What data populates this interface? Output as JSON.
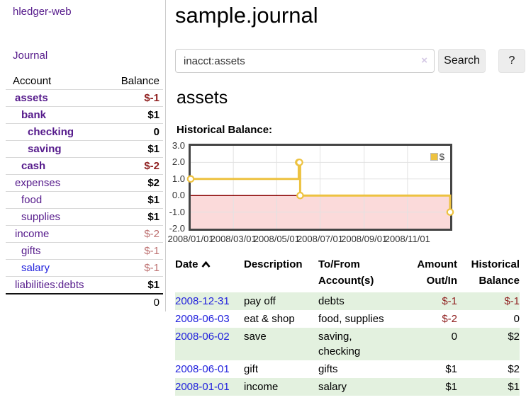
{
  "app": {
    "title": "hledger-web"
  },
  "nav": {
    "journal": "Journal"
  },
  "sidebar": {
    "header": {
      "account": "Account",
      "balance": "Balance"
    },
    "accounts": [
      {
        "name": "assets",
        "balance": "$-1"
      },
      {
        "name": "bank",
        "balance": "$1"
      },
      {
        "name": "checking",
        "balance": "0"
      },
      {
        "name": "saving",
        "balance": "$1"
      },
      {
        "name": "cash",
        "balance": "$-2"
      },
      {
        "name": "expenses",
        "balance": "$2"
      },
      {
        "name": "food",
        "balance": "$1"
      },
      {
        "name": "supplies",
        "balance": "$1"
      },
      {
        "name": "income",
        "balance": "$-2"
      },
      {
        "name": "gifts",
        "balance": "$-1"
      },
      {
        "name": "salary",
        "balance": "$-1"
      },
      {
        "name": "liabilities:debts",
        "balance": "$1"
      }
    ],
    "total": "0"
  },
  "header": {
    "title": "sample.journal"
  },
  "search": {
    "query": "inacct:assets",
    "clear_icon": "×",
    "search_label": "Search",
    "help_label": "?"
  },
  "main": {
    "account_heading": "assets",
    "chart_label": "Historical Balance:"
  },
  "chart_data": {
    "type": "line",
    "title": "Historical Balance:",
    "step": true,
    "series": [
      {
        "name": "$",
        "color": "#edc240",
        "points": [
          [
            "2008-01-01",
            1
          ],
          [
            "2008-06-01",
            2
          ],
          [
            "2008-06-02",
            2
          ],
          [
            "2008-06-03",
            0
          ],
          [
            "2008-12-31",
            -1
          ]
        ]
      }
    ],
    "xrange": [
      "2008-01-01",
      "2008-12-31"
    ],
    "ylim": [
      -2,
      3
    ],
    "yticks": [
      "3.0",
      "2.0",
      "1.0",
      "0.0",
      "-1.0",
      "-2.0"
    ],
    "xticks": [
      "2008/01/01",
      "2008/03/01",
      "2008/05/01",
      "2008/07/01",
      "2008/09/01",
      "2008/11/01"
    ],
    "legend_position": "top-right",
    "grid": true,
    "negative_fill": "#fbdada",
    "zero_line_color": "#8b0000",
    "gridline_color": "#e2e2e2"
  },
  "register": {
    "columns": [
      "Date",
      "Description",
      "To/From Account(s)",
      "Amount Out/In",
      "Historical Balance"
    ],
    "sort_icon": "chevron-up",
    "rows": [
      {
        "date": "2008-12-31",
        "description": "pay off",
        "accounts": "debts",
        "amount": "$-1",
        "balance": "$-1"
      },
      {
        "date": "2008-06-03",
        "description": "eat & shop",
        "accounts": "food, supplies",
        "amount": "$-2",
        "balance": "0"
      },
      {
        "date": "2008-06-02",
        "description": "save",
        "accounts": "saving, checking",
        "amount": "0",
        "balance": "$2"
      },
      {
        "date": "2008-06-01",
        "description": "gift",
        "accounts": "gifts",
        "amount": "$1",
        "balance": "$2"
      },
      {
        "date": "2008-01-01",
        "description": "income",
        "accounts": "salary",
        "amount": "$1",
        "balance": "$1"
      }
    ]
  },
  "colors": {
    "link_purple": "#551a8b",
    "link_blue": "#2222dd",
    "negative": "#8f1f1f",
    "negative_dim": "#bd7070",
    "row_stripe_green": "#e3f1df",
    "series_gold": "#edc240",
    "negative_region_pink": "#fbdada",
    "zero_line": "#8b0000"
  }
}
